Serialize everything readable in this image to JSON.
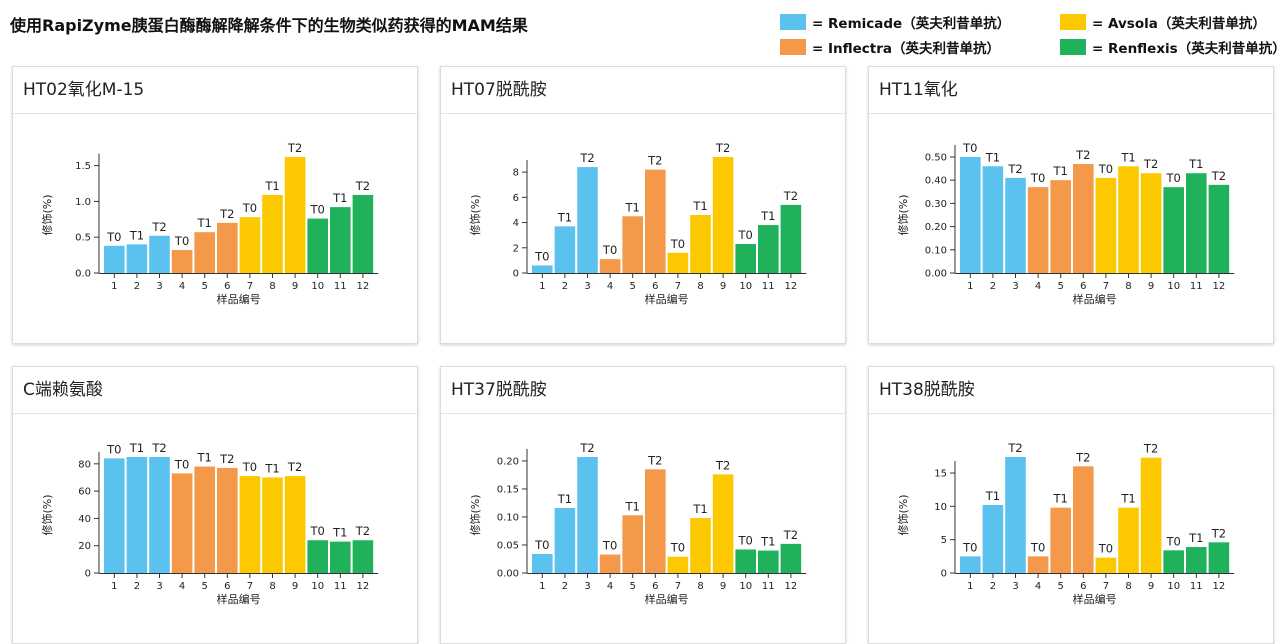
{
  "page_title": "使用RapiZyme胰蛋白酶酶解降解条件下的生物类似药获得的MAM结果",
  "legend": [
    {
      "label": "= Remicade（英夫利昔单抗）",
      "color": "#5bc2ef"
    },
    {
      "label": "= Avsola（英夫利昔单抗）",
      "color": "#fcc800"
    },
    {
      "label": "= Inflectra（英夫利昔单抗）",
      "color": "#f4984a"
    },
    {
      "label": "= Renflexis（英夫利昔单抗）",
      "color": "#20b25a"
    }
  ],
  "colors": {
    "remicade": "#5bc2ef",
    "inflectra": "#f4984a",
    "avsola": "#fcc800",
    "renflexis": "#20b25a"
  },
  "chart_data": [
    {
      "type": "bar",
      "title": "HT02氧化M-15",
      "xlabel": "样品编号",
      "ylabel": "修饰(%)",
      "categories": [
        "1",
        "2",
        "3",
        "4",
        "5",
        "6",
        "7",
        "8",
        "9",
        "10",
        "11",
        "12"
      ],
      "values": [
        0.38,
        0.4,
        0.52,
        0.32,
        0.57,
        0.7,
        0.78,
        1.09,
        1.62,
        0.76,
        0.92,
        1.09
      ],
      "bar_labels": [
        "T0",
        "T1",
        "T2",
        "T0",
        "T1",
        "T2",
        "T0",
        "T1",
        "T2",
        "T0",
        "T1",
        "T2"
      ],
      "bar_colors": [
        "#5bc2ef",
        "#5bc2ef",
        "#5bc2ef",
        "#f4984a",
        "#f4984a",
        "#f4984a",
        "#fcc800",
        "#fcc800",
        "#fcc800",
        "#20b25a",
        "#20b25a",
        "#20b25a"
      ],
      "ylim": [
        0,
        1.6
      ],
      "yticks": [
        "0.0",
        "0.5",
        "1.0",
        "1.5"
      ],
      "ytick_values": [
        0,
        0.5,
        1.0,
        1.5
      ],
      "ytop": 1.62
    },
    {
      "type": "bar",
      "title": "HT07脱酰胺",
      "xlabel": "样品编号",
      "ylabel": "修饰(%)",
      "categories": [
        "1",
        "2",
        "3",
        "4",
        "5",
        "6",
        "7",
        "8",
        "9",
        "10",
        "11",
        "12"
      ],
      "values": [
        0.6,
        3.7,
        8.4,
        1.1,
        4.5,
        8.2,
        1.6,
        4.6,
        9.2,
        2.3,
        3.8,
        5.4
      ],
      "bar_labels": [
        "T0",
        "T1",
        "T2",
        "T0",
        "T1",
        "T2",
        "T0",
        "T1",
        "T2",
        "T0",
        "T1",
        "T2"
      ],
      "bar_colors": [
        "#5bc2ef",
        "#5bc2ef",
        "#5bc2ef",
        "#f4984a",
        "#f4984a",
        "#f4984a",
        "#fcc800",
        "#fcc800",
        "#fcc800",
        "#20b25a",
        "#20b25a",
        "#20b25a"
      ],
      "ylim": [
        0,
        9
      ],
      "yticks": [
        "0",
        "2",
        "4",
        "6",
        "8"
      ],
      "ytick_values": [
        0,
        2,
        4,
        6,
        8
      ],
      "ytop": 9.2
    },
    {
      "type": "bar",
      "title": "HT11氧化",
      "xlabel": "样品编号",
      "ylabel": "修饰(%)",
      "categories": [
        "1",
        "2",
        "3",
        "4",
        "5",
        "6",
        "7",
        "8",
        "9",
        "10",
        "11",
        "12"
      ],
      "values": [
        0.5,
        0.46,
        0.41,
        0.37,
        0.4,
        0.47,
        0.41,
        0.46,
        0.43,
        0.37,
        0.43,
        0.38
      ],
      "bar_labels": [
        "T0",
        "T1",
        "T2",
        "T0",
        "T1",
        "T2",
        "T0",
        "T1",
        "T2",
        "T0",
        "T1",
        "T2"
      ],
      "bar_colors": [
        "#5bc2ef",
        "#5bc2ef",
        "#5bc2ef",
        "#f4984a",
        "#f4984a",
        "#f4984a",
        "#fcc800",
        "#fcc800",
        "#fcc800",
        "#20b25a",
        "#20b25a",
        "#20b25a"
      ],
      "ylim": [
        0,
        0.5
      ],
      "yticks": [
        "0.00",
        "0.10",
        "0.20",
        "0.30",
        "0.40",
        "0.50"
      ],
      "ytick_values": [
        0,
        0.1,
        0.2,
        0.3,
        0.4,
        0.5
      ],
      "ytop": 0.5
    },
    {
      "type": "bar",
      "title": "C端赖氨酸",
      "xlabel": "样品编号",
      "ylabel": "修饰(%)",
      "categories": [
        "1",
        "2",
        "3",
        "4",
        "5",
        "6",
        "7",
        "8",
        "9",
        "10",
        "11",
        "12"
      ],
      "values": [
        84,
        85,
        85,
        73,
        78,
        77,
        71,
        70,
        71,
        24,
        23,
        24
      ],
      "bar_labels": [
        "T0",
        "T1",
        "T2",
        "T0",
        "T1",
        "T2",
        "T0",
        "T1",
        "T2",
        "T0",
        "T1",
        "T2"
      ],
      "bar_colors": [
        "#5bc2ef",
        "#5bc2ef",
        "#5bc2ef",
        "#f4984a",
        "#f4984a",
        "#f4984a",
        "#fcc800",
        "#fcc800",
        "#fcc800",
        "#20b25a",
        "#20b25a",
        "#20b25a"
      ],
      "ylim": [
        0,
        85
      ],
      "yticks": [
        "0",
        "20",
        "40",
        "60",
        "80"
      ],
      "ytick_values": [
        0,
        20,
        40,
        60,
        80
      ],
      "ytop": 85
    },
    {
      "type": "bar",
      "title": "HT37脱酰胺",
      "xlabel": "样品编号",
      "ylabel": "修饰(%)",
      "categories": [
        "1",
        "2",
        "3",
        "4",
        "5",
        "6",
        "7",
        "8",
        "9",
        "10",
        "11",
        "12"
      ],
      "values": [
        0.034,
        0.116,
        0.207,
        0.033,
        0.103,
        0.185,
        0.029,
        0.098,
        0.176,
        0.042,
        0.04,
        0.052
      ],
      "bar_labels": [
        "T0",
        "T1",
        "T2",
        "T0",
        "T1",
        "T2",
        "T0",
        "T1",
        "T2",
        "T0",
        "T1",
        "T2"
      ],
      "bar_colors": [
        "#5bc2ef",
        "#5bc2ef",
        "#5bc2ef",
        "#f4984a",
        "#f4984a",
        "#f4984a",
        "#fcc800",
        "#fcc800",
        "#fcc800",
        "#20b25a",
        "#20b25a",
        "#20b25a"
      ],
      "ylim": [
        0,
        0.2
      ],
      "yticks": [
        "0.00",
        "0.05",
        "0.10",
        "0.15",
        "0.20"
      ],
      "ytick_values": [
        0,
        0.05,
        0.1,
        0.15,
        0.2
      ],
      "ytop": 0.207
    },
    {
      "type": "bar",
      "title": "HT38脱酰胺",
      "xlabel": "样品编号",
      "ylabel": "修饰(%)",
      "categories": [
        "1",
        "2",
        "3",
        "4",
        "5",
        "6",
        "7",
        "8",
        "9",
        "10",
        "11",
        "12"
      ],
      "values": [
        2.5,
        10.2,
        17.4,
        2.5,
        9.8,
        16.0,
        2.3,
        9.8,
        17.3,
        3.4,
        3.9,
        4.6
      ],
      "bar_labels": [
        "T0",
        "T1",
        "T2",
        "T0",
        "T1",
        "T2",
        "T0",
        "T1",
        "T2",
        "T0",
        "T1",
        "T2"
      ],
      "bar_colors": [
        "#5bc2ef",
        "#5bc2ef",
        "#5bc2ef",
        "#f4984a",
        "#f4984a",
        "#f4984a",
        "#fcc800",
        "#fcc800",
        "#fcc800",
        "#20b25a",
        "#20b25a",
        "#20b25a"
      ],
      "ylim": [
        0,
        17.5
      ],
      "yticks": [
        "0",
        "5",
        "10",
        "15"
      ],
      "ytick_values": [
        0,
        5,
        10,
        15
      ],
      "ytop": 17.4
    }
  ]
}
